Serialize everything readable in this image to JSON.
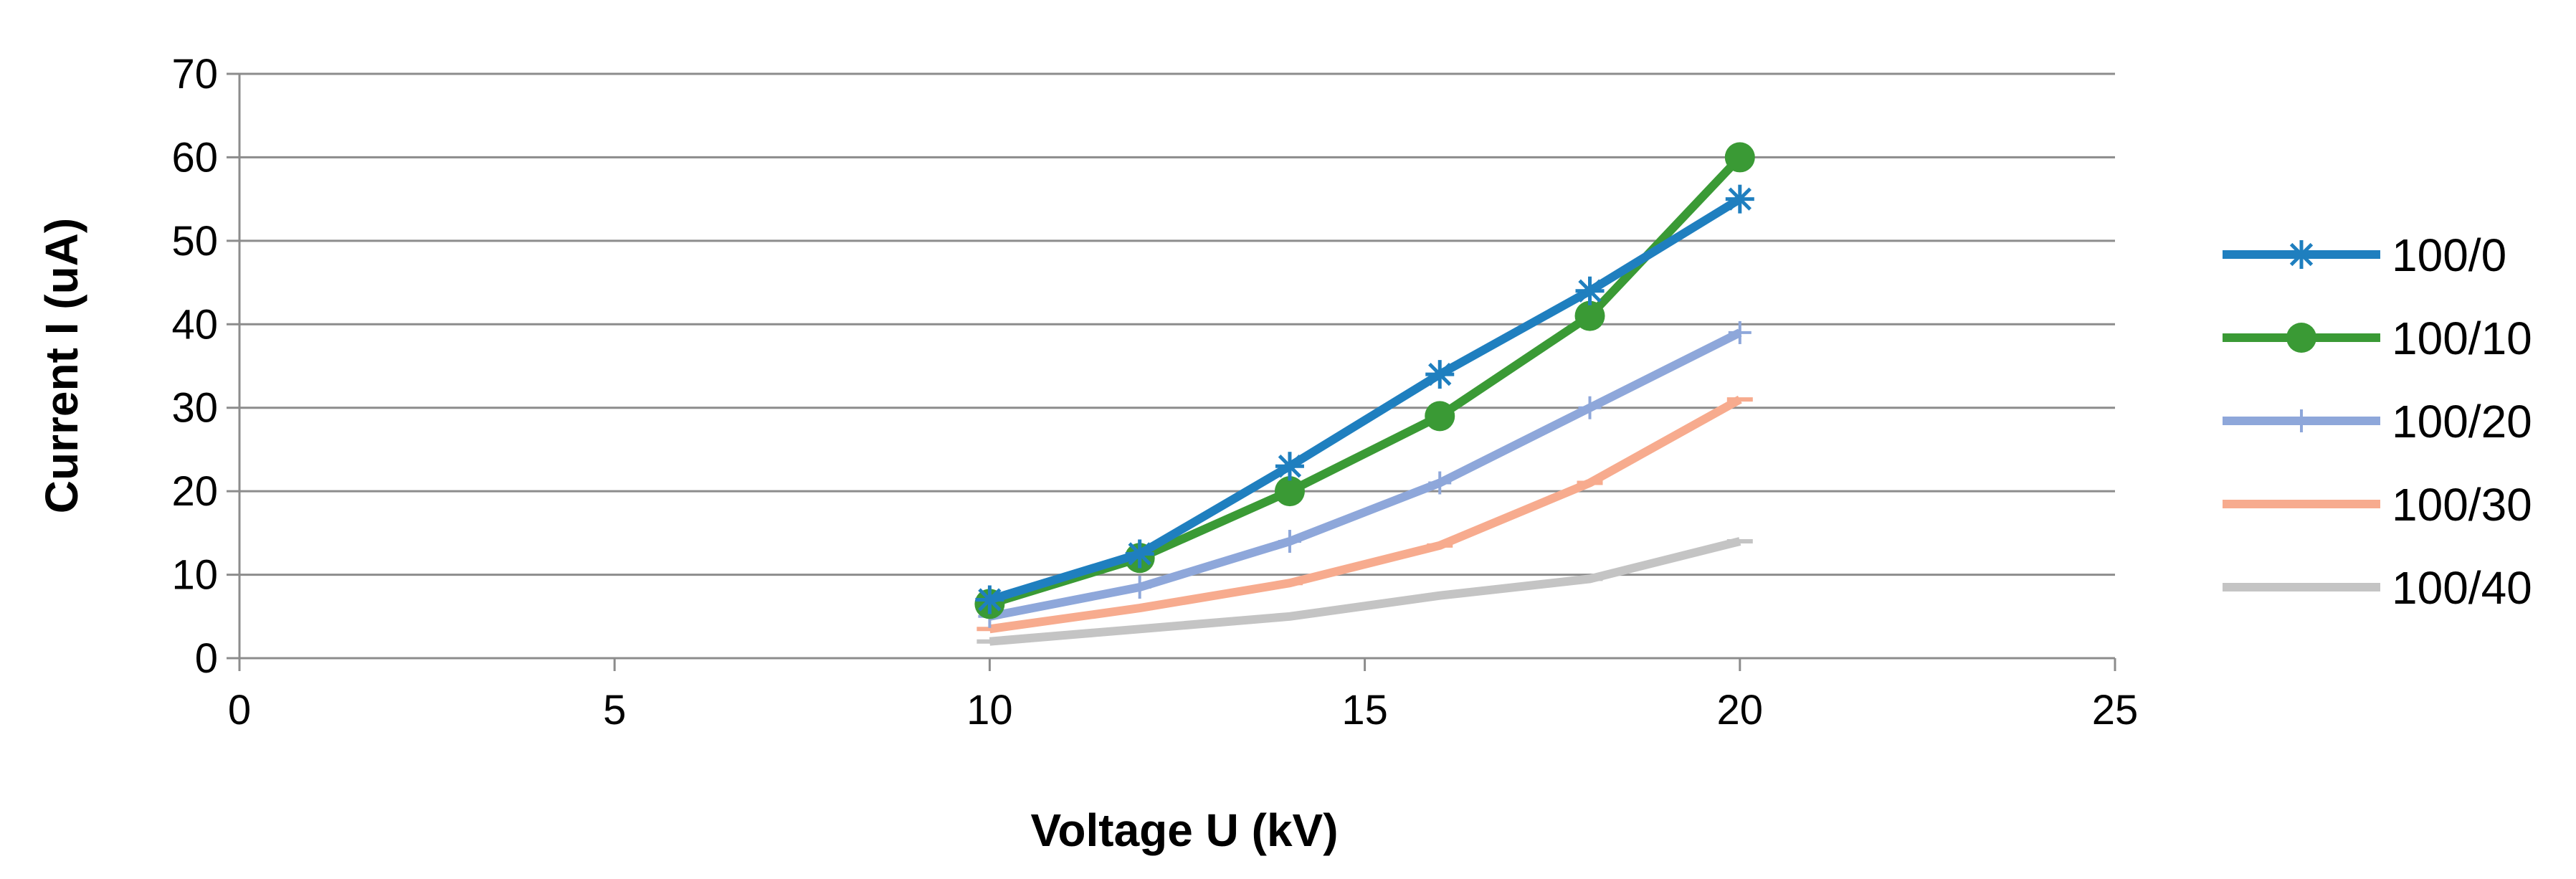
{
  "chart_data": {
    "type": "line",
    "title": "",
    "xlabel": "Voltage U (kV)",
    "ylabel": "Current I (uA)",
    "xlim": [
      0,
      25
    ],
    "ylim": [
      0,
      70
    ],
    "xticks": [
      0,
      5,
      10,
      15,
      20,
      25
    ],
    "yticks": [
      0,
      10,
      20,
      30,
      40,
      50,
      60,
      70
    ],
    "grid": "horizontal",
    "legend_position": "right",
    "x": [
      10,
      12,
      14,
      16,
      18,
      20
    ],
    "series": [
      {
        "name": "100/0",
        "color": "#1f7fbf",
        "marker": "star",
        "values": [
          7,
          12.5,
          23,
          34,
          44,
          55
        ]
      },
      {
        "name": "100/10",
        "color": "#3a9a35",
        "marker": "circle",
        "values": [
          6.5,
          12,
          20,
          29,
          41,
          60
        ]
      },
      {
        "name": "100/20",
        "color": "#8ea7da",
        "marker": "plus",
        "values": [
          5,
          8.5,
          14,
          21,
          30,
          39
        ]
      },
      {
        "name": "100/30",
        "color": "#f7ab8e",
        "marker": "dash",
        "values": [
          3.5,
          6,
          9,
          13.5,
          21,
          31
        ]
      },
      {
        "name": "100/40",
        "color": "#c4c4c4",
        "marker": "dash",
        "values": [
          2,
          3.5,
          5,
          7.5,
          9.5,
          14
        ]
      }
    ]
  }
}
